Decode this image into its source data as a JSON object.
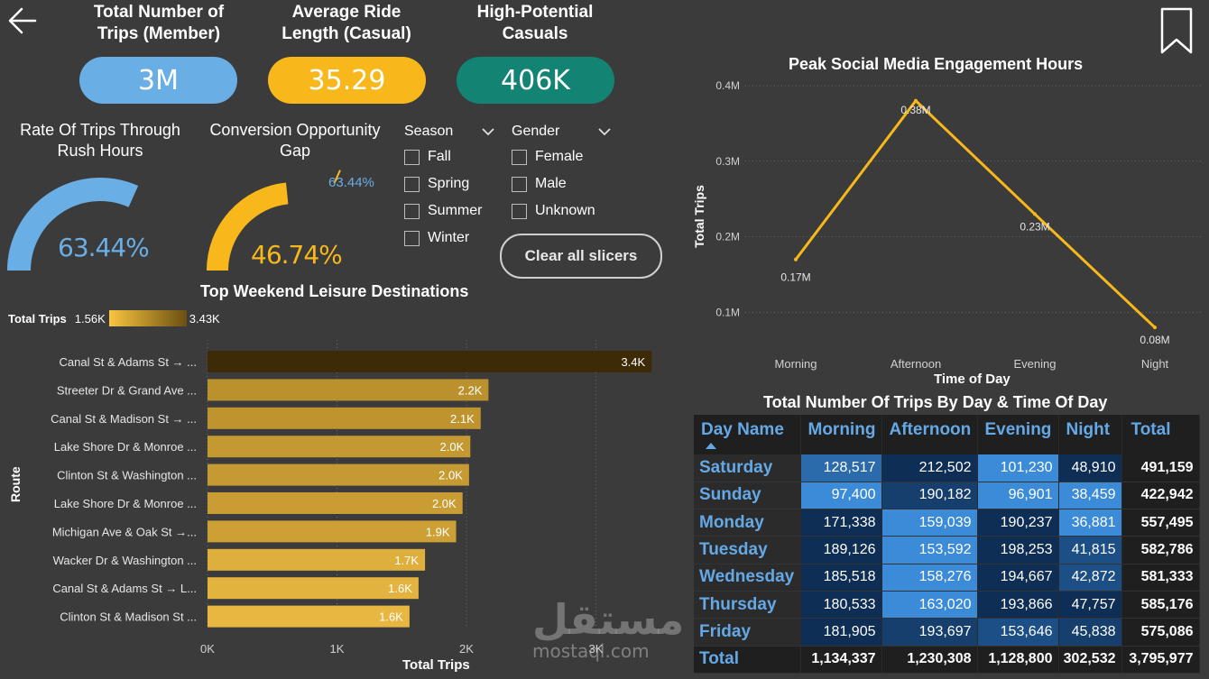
{
  "kpis": [
    {
      "title": "Total Number of Trips (Member)",
      "value": "3M",
      "color": "#6aaee6"
    },
    {
      "title": "Average Ride Length (Casual)",
      "value": "35.29",
      "color": "#f8b81c"
    },
    {
      "title": "High-Potential Casuals",
      "value": "406K",
      "color": "#138374"
    }
  ],
  "gauges": {
    "rush": {
      "title": "Rate Of Trips Through Rush Hours",
      "value_text": "63.44%",
      "fraction": 0.6344,
      "color": "#6aaee6"
    },
    "conversion": {
      "title": "Conversion Opportunity Gap",
      "value_text": "46.74%",
      "target_text": "63.44%",
      "fraction": 0.4674,
      "target_fraction": 0.6344,
      "color": "#f8b81c",
      "target_color": "#6aaee6"
    }
  },
  "slicers": {
    "season": {
      "label": "Season",
      "options": [
        "Fall",
        "Spring",
        "Summer",
        "Winter"
      ]
    },
    "gender": {
      "label": "Gender",
      "options": [
        "Female",
        "Male",
        "Unknown"
      ]
    },
    "clear_label": "Clear all slicers"
  },
  "weekend_chart": {
    "title": "Top Weekend Leisure Destinations",
    "legend_label": "Total Trips",
    "legend_min": "1.56K",
    "legend_max": "3.43K",
    "y_axis_label": "Route",
    "x_axis_label": "Total Trips",
    "ticks": [
      "0K",
      "1K",
      "2K",
      "3K"
    ]
  },
  "chart_data": [
    {
      "type": "bar",
      "orientation": "horizontal",
      "title": "Top Weekend Leisure Destinations",
      "xlabel": "Total Trips",
      "ylabel": "Route",
      "xlim": [
        0,
        3430
      ],
      "categories": [
        "Canal St & Adams St → ...",
        "Streeter Dr & Grand Ave ...",
        "Canal St & Madison St → ...",
        "Lake Shore Dr & Monroe ...",
        "Clinton St & Washington ...",
        "Lake Shore Dr & Monroe ...",
        "Michigan Ave & Oak St →...",
        "Wacker Dr & Washington ...",
        "Canal St & Adams St → L...",
        "Clinton St & Madison St ..."
      ],
      "values": [
        3430,
        2170,
        2110,
        2030,
        2020,
        1970,
        1920,
        1680,
        1630,
        1560
      ],
      "value_labels": [
        "3.4K",
        "2.2K",
        "2.1K",
        "2.0K",
        "2.0K",
        "2.0K",
        "1.9K",
        "1.7K",
        "1.6K",
        "1.6K"
      ]
    },
    {
      "type": "line",
      "title": "Peak Social Media Engagement Hours",
      "xlabel": "Time of Day",
      "ylabel": "Total Trips",
      "categories": [
        "Morning",
        "Afternoon",
        "Evening",
        "Night"
      ],
      "values": [
        0.17,
        0.38,
        0.23,
        0.08
      ],
      "value_labels": [
        "0.17M",
        "0.38M",
        "0.23M",
        "0.08M"
      ],
      "ylim": [
        0.05,
        0.42
      ],
      "y_ticks": [
        0.1,
        0.2,
        0.3,
        0.4
      ],
      "y_tick_labels": [
        "0.1M",
        "0.2M",
        "0.3M",
        "0.4M"
      ],
      "color": "#f8b81c"
    }
  ],
  "matrix": {
    "title": "Total Number Of Trips By Day & Time Of Day",
    "headers": [
      "Day Name",
      "Morning",
      "Afternoon",
      "Evening",
      "Night",
      "Total"
    ],
    "rows": [
      {
        "day": "Saturday",
        "cells": [
          "128,517",
          "212,502",
          "101,230",
          "48,910"
        ],
        "total": "491,159"
      },
      {
        "day": "Sunday",
        "cells": [
          "97,400",
          "190,182",
          "96,901",
          "38,459"
        ],
        "total": "422,942"
      },
      {
        "day": "Monday",
        "cells": [
          "171,338",
          "159,039",
          "190,237",
          "36,881"
        ],
        "total": "557,495"
      },
      {
        "day": "Tuesday",
        "cells": [
          "189,126",
          "153,592",
          "198,253",
          "41,815"
        ],
        "total": "582,786"
      },
      {
        "day": "Wednesday",
        "cells": [
          "185,518",
          "158,276",
          "194,667",
          "42,872"
        ],
        "total": "581,333"
      },
      {
        "day": "Thursday",
        "cells": [
          "180,533",
          "163,020",
          "193,866",
          "47,757"
        ],
        "total": "585,176"
      },
      {
        "day": "Friday",
        "cells": [
          "181,905",
          "193,697",
          "153,646",
          "45,838"
        ],
        "total": "575,086"
      }
    ],
    "total_row": {
      "day": "Total",
      "cells": [
        "1,134,337",
        "1,230,308",
        "1,128,800",
        "302,532"
      ],
      "total": "3,795,977"
    }
  },
  "watermark": {
    "arabic": "مستقل",
    "latin": "mostaql.com"
  }
}
